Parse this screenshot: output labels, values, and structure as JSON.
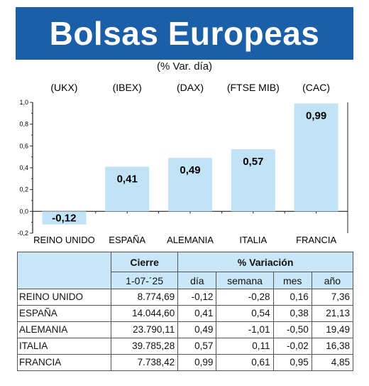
{
  "title": "Bolsas Europeas",
  "subtitle": "(% Var. día)",
  "chart_data": {
    "type": "bar",
    "index_labels": [
      "(UKX)",
      "(IBEX)",
      "(DAX)",
      "(FTSE MIB)",
      "(CAC)"
    ],
    "categories": [
      "REINO UNIDO",
      "ESPAÑA",
      "ALEMANIA",
      "ITALIA",
      "FRANCIA"
    ],
    "values": [
      -0.12,
      0.41,
      0.49,
      0.57,
      0.99
    ],
    "value_labels": [
      "-0,12",
      "0,41",
      "0,49",
      "0,57",
      "0,99"
    ],
    "yticks": [
      "1,0",
      "0,8",
      "0,6",
      "0,4",
      "0,2",
      "0,0",
      "-0,2"
    ],
    "ylim": [
      -0.2,
      1.0
    ],
    "bar_color": "#c2e3f5",
    "grid": true
  },
  "table": {
    "group_headers": {
      "cierre": "Cierre",
      "variacion": "% Variación"
    },
    "sub_headers": {
      "date": "1-07-´25",
      "dia": "día",
      "semana": "semana",
      "mes": "mes",
      "ano": "año"
    },
    "rows": [
      {
        "country": "REINO UNIDO",
        "cierre": "8.774,69",
        "dia": "-0,12",
        "semana": "-0,28",
        "mes": "0,16",
        "ano": "7,36"
      },
      {
        "country": "ESPAÑA",
        "cierre": "14.044,60",
        "dia": "0,41",
        "semana": "0,54",
        "mes": "0,38",
        "ano": "21,13"
      },
      {
        "country": "ALEMANIA",
        "cierre": "23.790,11",
        "dia": "0,49",
        "semana": "-1,01",
        "mes": "-0,50",
        "ano": "19,49"
      },
      {
        "country": "ITALIA",
        "cierre": "39.785,28",
        "dia": "0,57",
        "semana": "0,11",
        "mes": "-0,02",
        "ano": "16,38"
      },
      {
        "country": "FRANCIA",
        "cierre": "7.738,42",
        "dia": "0,99",
        "semana": "0,61",
        "mes": "0,95",
        "ano": "4,85"
      }
    ]
  }
}
